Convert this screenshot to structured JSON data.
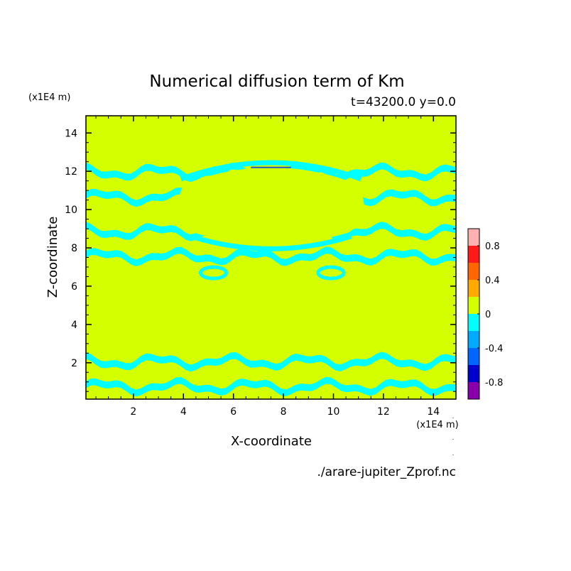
{
  "chart_data": {
    "type": "heatmap",
    "title": "Numerical diffusion term of Km",
    "subtitle": "t=43200.0 y=0.0",
    "xlabel": "X-coordinate",
    "ylabel": "Z-coordinate",
    "x_unit": "(x1E4 m)",
    "y_unit": "(x1E4 m)",
    "footer": "./arare-jupiter_Zprof.nc",
    "xlim": [
      0.1,
      14.9
    ],
    "ylim": [
      0.1,
      14.9
    ],
    "x_ticks": [
      "2",
      "4",
      "6",
      "8",
      "10",
      "12",
      "14"
    ],
    "y_ticks": [
      "2",
      "4",
      "6",
      "8",
      "10",
      "12",
      "14"
    ],
    "grid": false,
    "field": {
      "background_value": "0",
      "background_color": "#d4ff00",
      "negative_band_color": "#00ffff",
      "negative_bands_z_ranges": [
        [
          0.1,
          2.7
        ],
        [
          6.3,
          9.6
        ],
        [
          10.0,
          12.5
        ]
      ],
      "minimum_feature": {
        "x": 7.5,
        "z": 12.2,
        "color": "#2255cc"
      }
    },
    "colorbar": {
      "tick_labels": [
        "0.8",
        "0.4",
        "0",
        "-0.4",
        "-0.8"
      ],
      "tick_values": [
        0.8,
        0.4,
        0,
        -0.4,
        -0.8
      ],
      "range": [
        -1.0,
        1.0
      ],
      "levels": [
        {
          "from": 0.8,
          "to": 1.0,
          "color": "#ffb0b0"
        },
        {
          "from": 0.6,
          "to": 0.8,
          "color": "#ff1a1a"
        },
        {
          "from": 0.4,
          "to": 0.6,
          "color": "#ff6600"
        },
        {
          "from": 0.2,
          "to": 0.4,
          "color": "#ffaa00"
        },
        {
          "from": 0.0,
          "to": 0.2,
          "color": "#d4ff00"
        },
        {
          "from": -0.2,
          "to": 0.0,
          "color": "#00ffff"
        },
        {
          "from": -0.4,
          "to": -0.2,
          "color": "#00aaff"
        },
        {
          "from": -0.6,
          "to": -0.4,
          "color": "#0066ff"
        },
        {
          "from": -0.8,
          "to": -0.6,
          "color": "#0000cc"
        },
        {
          "from": -1.0,
          "to": -0.8,
          "color": "#8800aa"
        }
      ]
    }
  }
}
